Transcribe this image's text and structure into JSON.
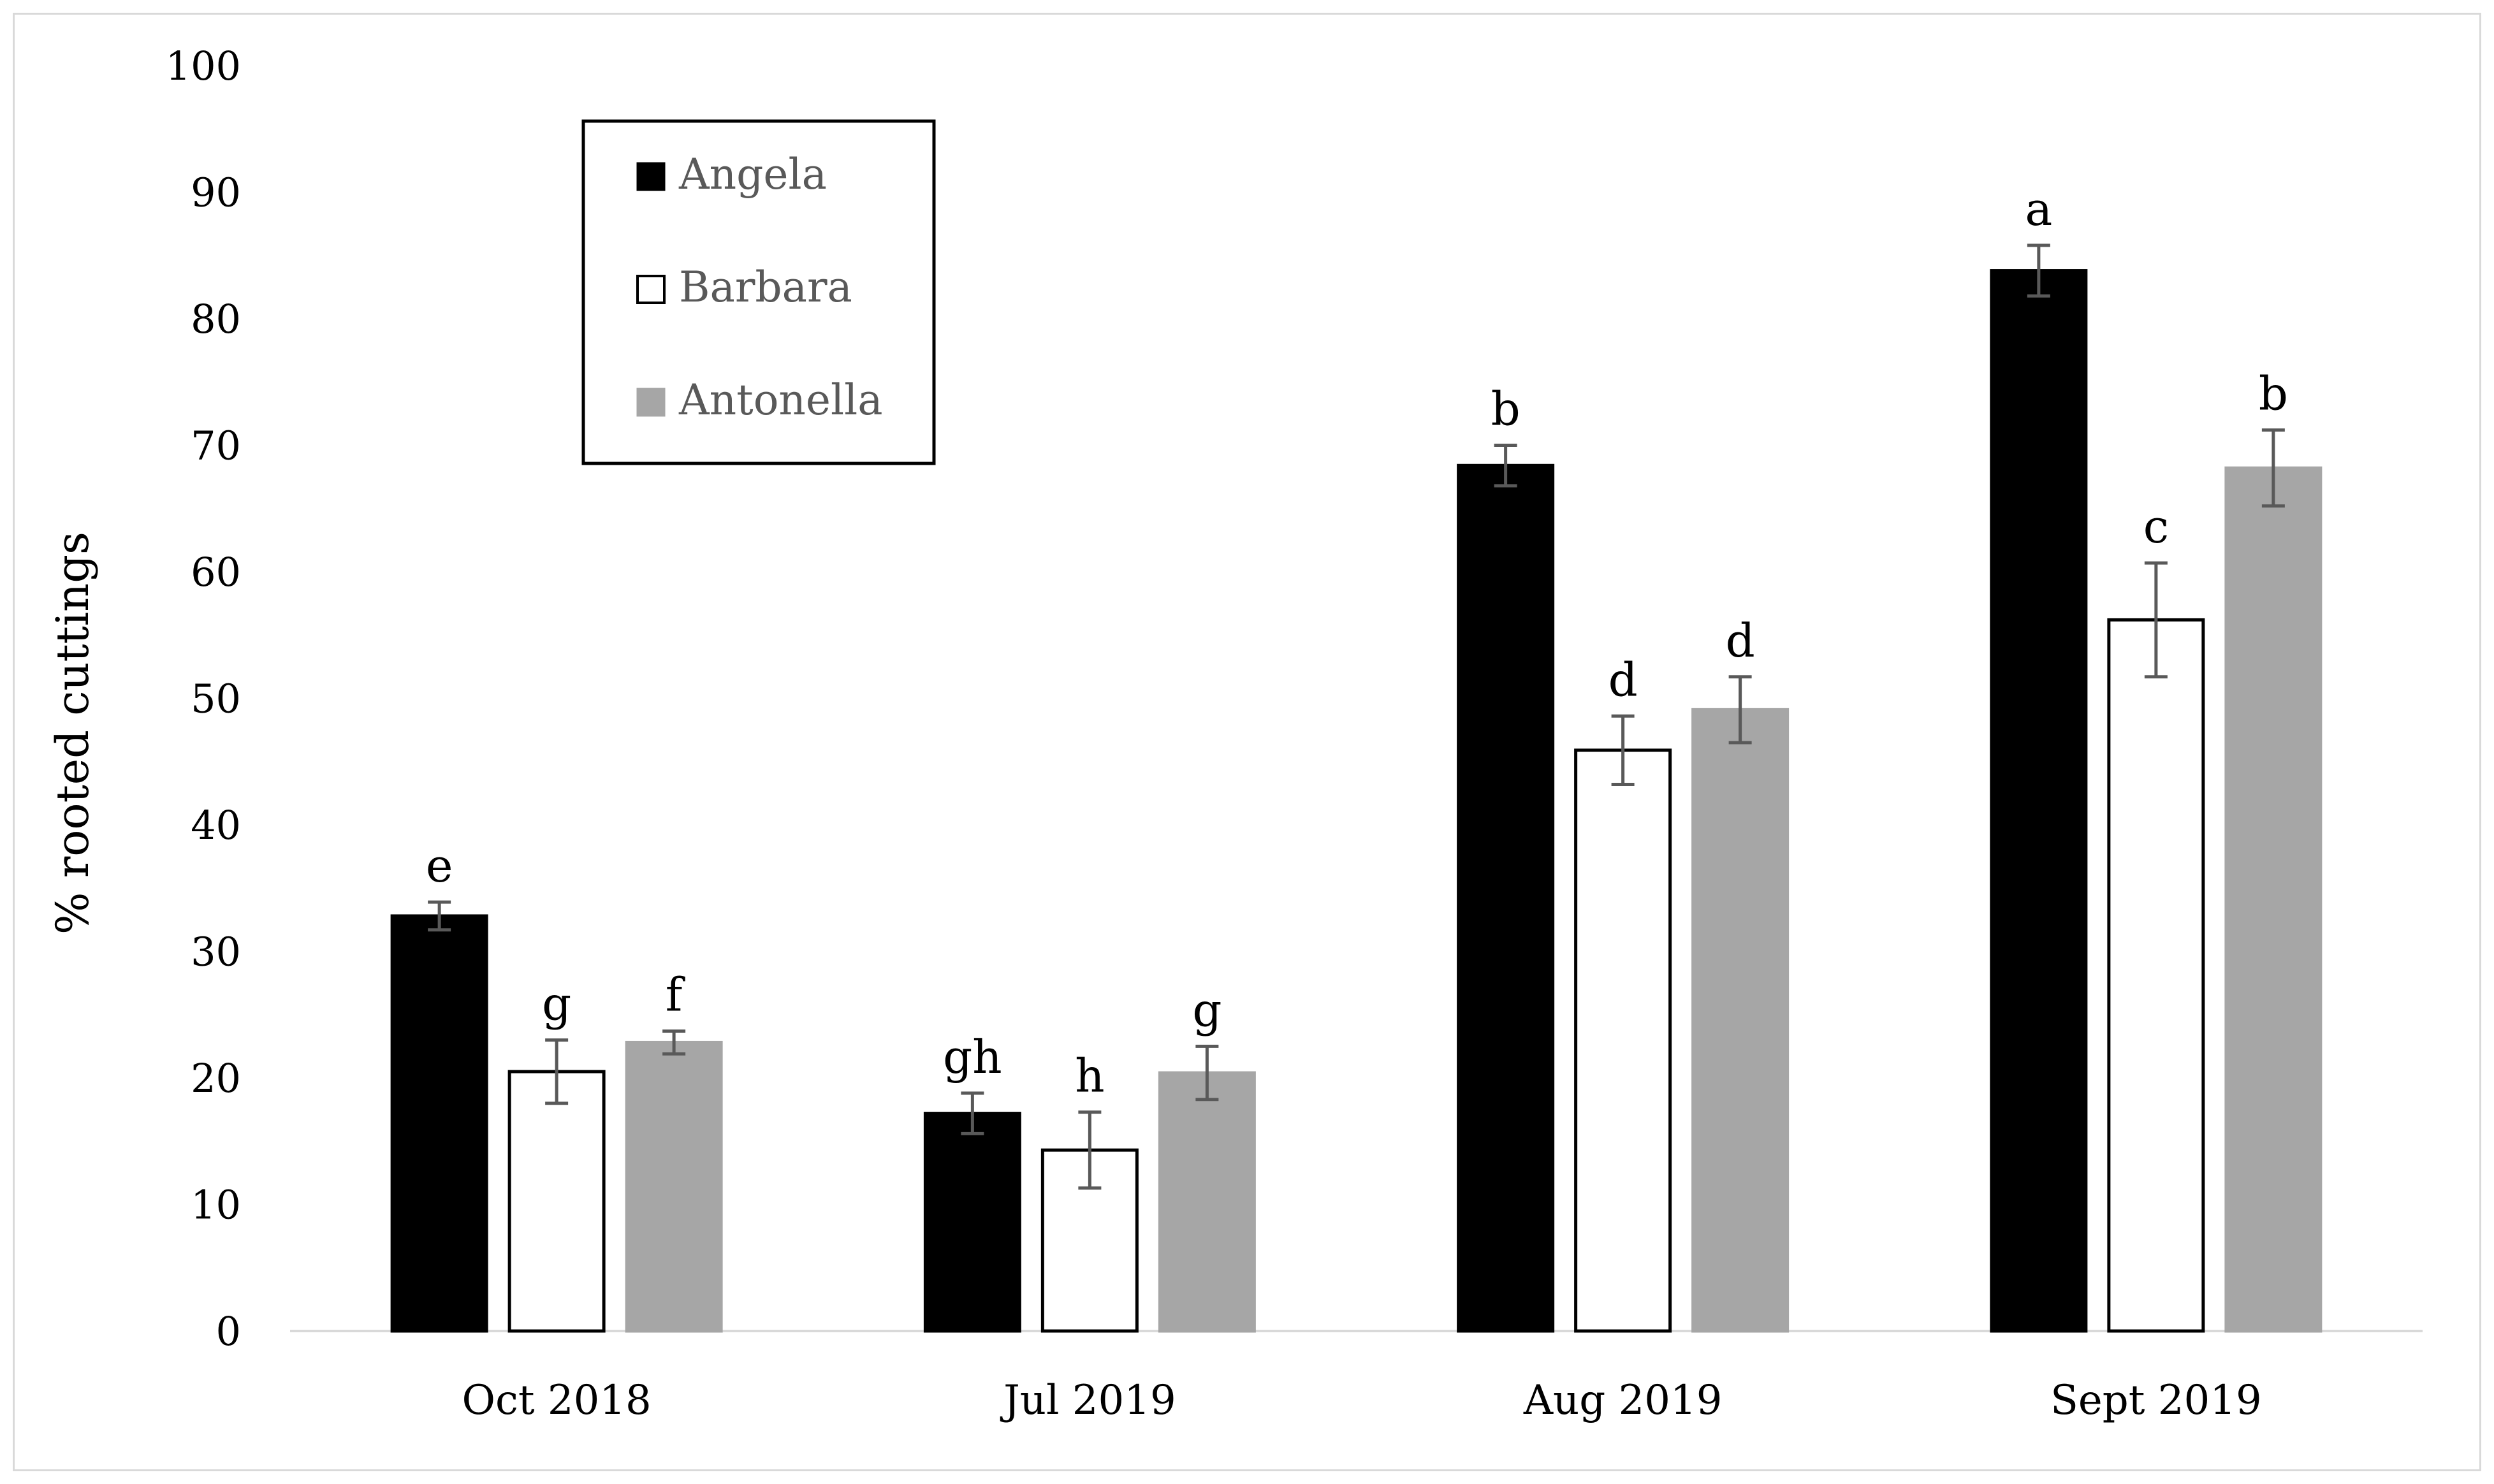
{
  "chart_data": {
    "type": "bar",
    "title": "",
    "xlabel": "",
    "ylabel": "% rooted cuttings",
    "ylim": [
      0,
      100
    ],
    "yticks": [
      0,
      10,
      20,
      30,
      40,
      50,
      60,
      70,
      80,
      90,
      100
    ],
    "grid": false,
    "legend_position": "top-left",
    "categories": [
      "Oct 2018",
      "Jul 2019",
      "Aug 2019",
      "Sept 2019"
    ],
    "series": [
      {
        "name": "Angela",
        "color": "#000000",
        "values": [
          32.8,
          17.2,
          68.4,
          83.8
        ],
        "errors": [
          1.1,
          1.6,
          1.6,
          2.0
        ],
        "letters": [
          "e",
          "gh",
          "b",
          "a"
        ]
      },
      {
        "name": "Barbara",
        "color": "#ffffff",
        "values": [
          20.5,
          14.3,
          45.9,
          56.2
        ],
        "errors": [
          2.5,
          3.0,
          2.7,
          4.5
        ],
        "letters": [
          "g",
          "h",
          "d",
          "c"
        ]
      },
      {
        "name": "Antonella",
        "color": "#a6a6a6",
        "values": [
          22.8,
          20.4,
          49.1,
          68.2
        ],
        "errors": [
          0.9,
          2.1,
          2.6,
          3.0
        ],
        "letters": [
          "f",
          "g",
          "d",
          "b"
        ]
      }
    ]
  }
}
